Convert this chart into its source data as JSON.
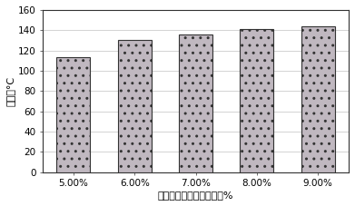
{
  "categories": [
    "5.00%",
    "6.00%",
    "7.00%",
    "8.00%",
    "9.00%"
  ],
  "values": [
    113,
    130,
    136,
    141,
    144
  ],
  "bar_color": "#c0b8c0",
  "bar_edgecolor": "#333333",
  "xlabel": "异丁基三乙氧基硫烷用量%",
  "ylabel": "接触角°C",
  "ylim": [
    0,
    160
  ],
  "yticks": [
    0,
    20,
    40,
    60,
    80,
    100,
    120,
    140,
    160
  ],
  "xlabel_fontsize": 8,
  "ylabel_fontsize": 8,
  "tick_fontsize": 7.5,
  "plot_bg": "#ffffff",
  "figure_bg": "#ffffff",
  "grid_color": "#cccccc",
  "border_color": "#333333"
}
